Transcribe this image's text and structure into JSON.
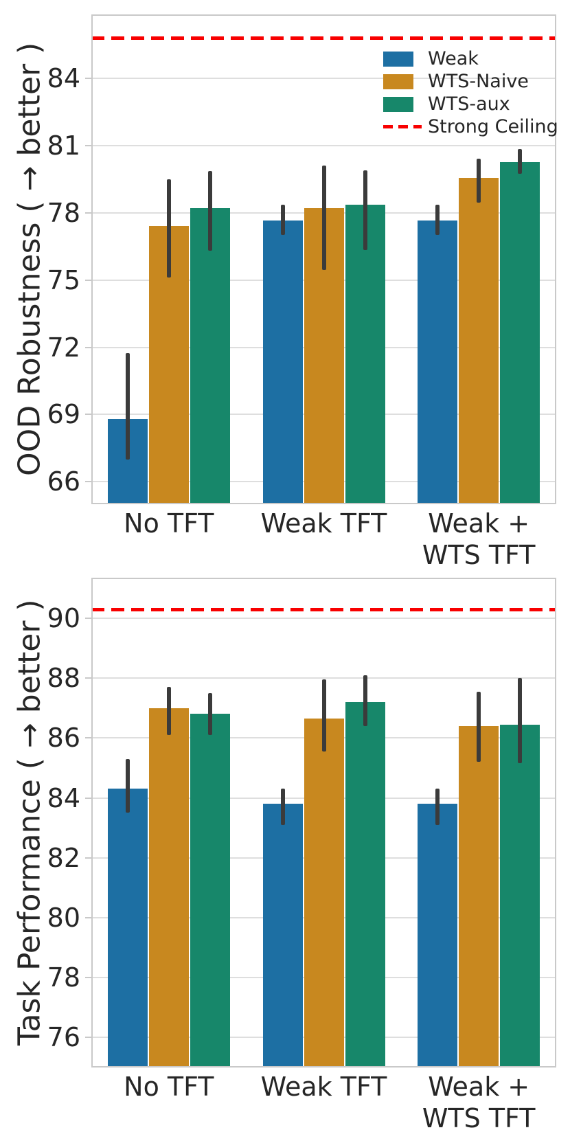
{
  "figure": {
    "background": "#ffffff",
    "text_color": "#262626",
    "grid_color": "#dedede",
    "spine_color": "#c9c9c9",
    "errorbar_color": "#3b3b3b"
  },
  "legend": {
    "position": "upper right",
    "labels": [
      "Weak",
      "WTS-Naive",
      "WTS-aux",
      "Strong Ceiling"
    ]
  },
  "chart_data": [
    {
      "type": "bar",
      "title": "",
      "xlabel": "",
      "ylabel": "OOD Robustness ( → better )",
      "categories": [
        "No TFT",
        "Weak TFT",
        "Weak +\nWTS TFT"
      ],
      "series": [
        {
          "name": "Weak",
          "color": "#1d6fa3",
          "values": [
            68.8,
            77.65,
            77.65
          ],
          "err_lo": [
            67.0,
            77.0,
            77.0
          ],
          "err_hi": [
            71.75,
            78.35,
            78.35
          ]
        },
        {
          "name": "WTS-Naive",
          "color": "#c8881f",
          "values": [
            77.4,
            78.2,
            79.55
          ],
          "err_lo": [
            75.1,
            75.45,
            78.45
          ],
          "err_hi": [
            79.5,
            80.1,
            80.4
          ]
        },
        {
          "name": "WTS-aux",
          "color": "#17876a",
          "values": [
            78.2,
            78.35,
            80.25
          ],
          "err_lo": [
            76.3,
            76.35,
            79.75
          ],
          "err_hi": [
            79.85,
            79.9,
            80.85
          ]
        }
      ],
      "ceiling": {
        "label": "Strong Ceiling",
        "value": 85.8,
        "color": "#f80000"
      },
      "ylim": [
        65.0,
        86.85
      ],
      "yticks": [
        66,
        69,
        72,
        75,
        78,
        81,
        84
      ],
      "grid": true,
      "legend_show": true,
      "legend_position": "upper right"
    },
    {
      "type": "bar",
      "title": "",
      "xlabel": "",
      "ylabel": "Task Performance ( → better )",
      "categories": [
        "No TFT",
        "Weak TFT",
        "Weak +\nWTS TFT"
      ],
      "series": [
        {
          "name": "Weak",
          "color": "#1d6fa3",
          "values": [
            84.3,
            83.8,
            83.8
          ],
          "err_lo": [
            83.5,
            83.1,
            83.1
          ],
          "err_hi": [
            85.3,
            84.3,
            84.3
          ]
        },
        {
          "name": "WTS-Naive",
          "color": "#c8881f",
          "values": [
            87.0,
            86.65,
            86.4
          ],
          "err_lo": [
            86.1,
            85.55,
            85.2
          ],
          "err_hi": [
            87.7,
            87.95,
            87.55
          ]
        },
        {
          "name": "WTS-aux",
          "color": "#17876a",
          "values": [
            86.8,
            87.2,
            86.45
          ],
          "err_lo": [
            86.1,
            86.4,
            85.15
          ],
          "err_hi": [
            87.5,
            88.1,
            88.0
          ]
        }
      ],
      "ceiling": {
        "label": "Strong Ceiling",
        "value": 90.3,
        "color": "#f80000"
      },
      "ylim": [
        75.0,
        91.35
      ],
      "yticks": [
        76,
        78,
        80,
        82,
        84,
        86,
        88,
        90
      ],
      "grid": true,
      "legend_show": false
    }
  ]
}
